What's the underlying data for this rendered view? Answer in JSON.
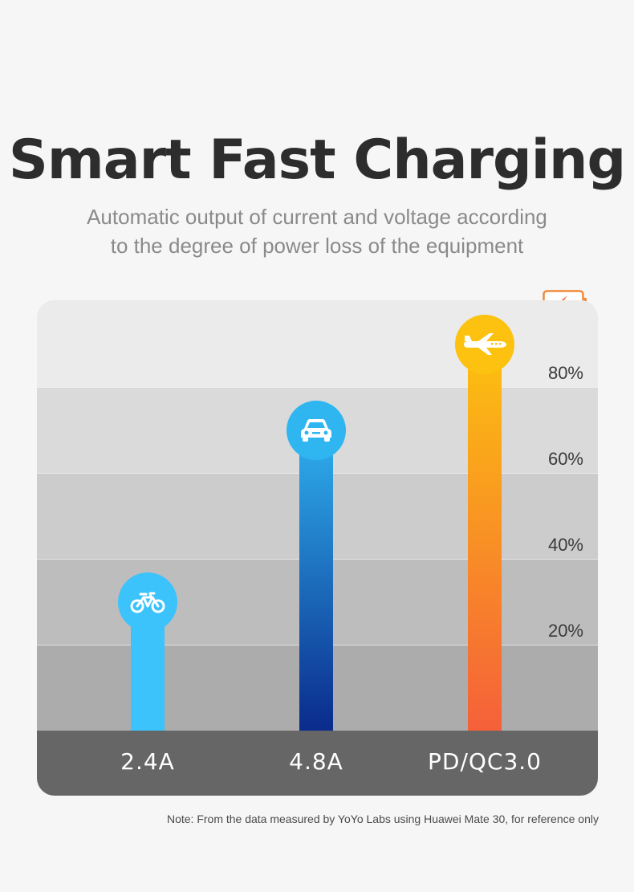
{
  "header": {
    "title": "Smart Fast Charging",
    "subtitle_lines": [
      "Automatic output of current and voltage according",
      "to the degree of power loss of the equipment"
    ]
  },
  "chart_data": {
    "type": "bar",
    "title": "Smart Fast Charging",
    "categories": [
      "2.4A",
      "4.8A",
      "PD/QC3.0"
    ],
    "values": [
      30,
      70,
      90
    ],
    "icons": [
      "bicycle-icon",
      "car-icon",
      "airplane-icon"
    ],
    "colors": [
      [
        "#3cc3fc",
        "#3cc3fc"
      ],
      [
        "#2fb0ee",
        "#0a2b8c"
      ],
      [
        "#fcc10f",
        "#f5603a"
      ]
    ],
    "bubble_colors": [
      "#3cc3fc",
      "#2fb6f0",
      "#fcc20f"
    ],
    "ylim": [
      0,
      100
    ],
    "yticks": [
      20,
      40,
      60,
      80
    ],
    "ytick_labels": [
      "20%",
      "40%",
      "60%",
      "80%"
    ],
    "xlabel": "",
    "ylabel": "",
    "grid": true
  },
  "colors": {
    "axis_band": "#666666",
    "battery": "#f08a3c"
  },
  "footer": {
    "note": "Note: From the data measured by YoYo Labs using Huawei Mate 30, for reference only"
  }
}
